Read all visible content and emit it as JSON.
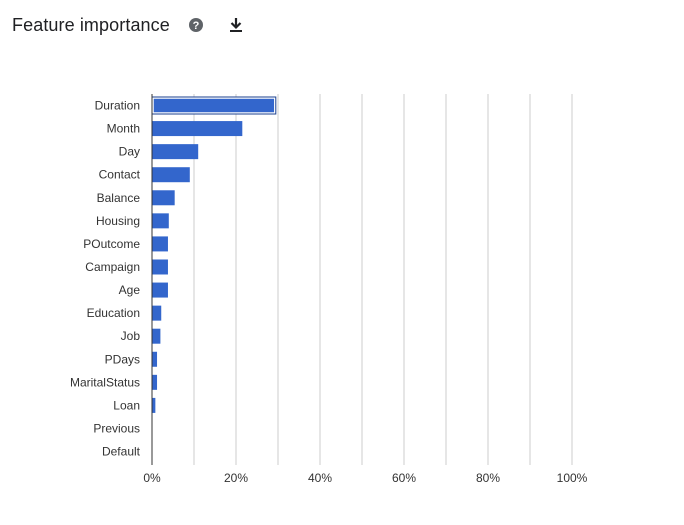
{
  "header": {
    "title": "Feature importance",
    "help_icon": "help-circle-icon",
    "download_icon": "download-icon"
  },
  "colors": {
    "bar": "#3366cc",
    "grid": "#cccccc",
    "axis": "#333333",
    "text": "#333333"
  },
  "chart_data": {
    "type": "bar",
    "orientation": "horizontal",
    "title": "",
    "xlabel": "",
    "ylabel": "",
    "categories": [
      "Duration",
      "Month",
      "Day",
      "Contact",
      "Balance",
      "Housing",
      "POutcome",
      "Campaign",
      "Age",
      "Education",
      "Job",
      "PDays",
      "MaritalStatus",
      "Loan",
      "Previous",
      "Default"
    ],
    "values": [
      29,
      21.5,
      11,
      9,
      5.4,
      4,
      3.8,
      3.8,
      3.8,
      2.2,
      2,
      1.2,
      1.2,
      0.8,
      0.1,
      0
    ],
    "xlim": [
      0,
      100
    ],
    "x_ticks": [
      0,
      20,
      40,
      60,
      80,
      100
    ],
    "x_tick_labels": [
      "0%",
      "20%",
      "40%",
      "60%",
      "80%",
      "100%"
    ],
    "grid": true,
    "legend": "none",
    "highlighted_category": "Duration"
  }
}
